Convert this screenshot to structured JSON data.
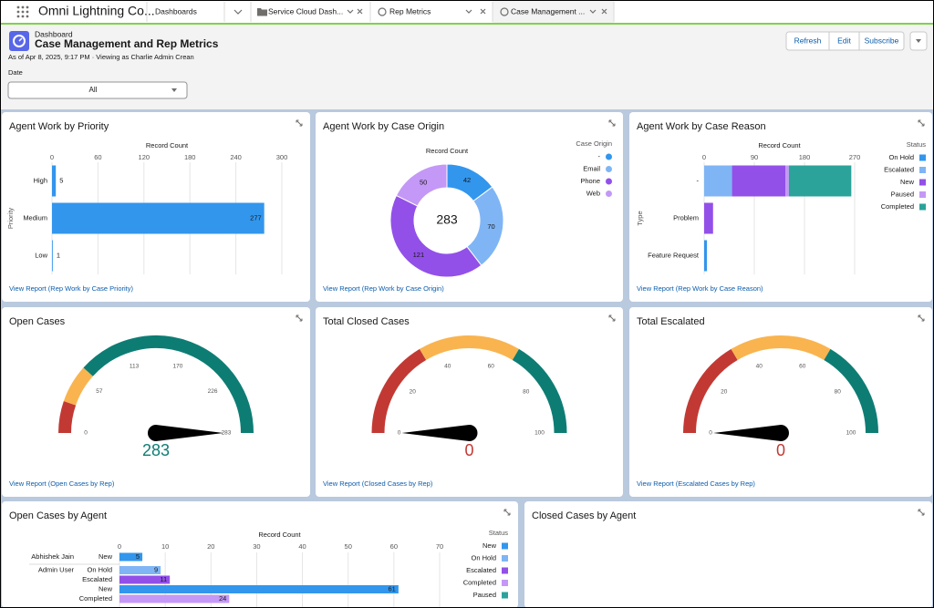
{
  "app": {
    "name": "Omni Lightning Co...",
    "tabs": [
      "Dashboards",
      "Service Cloud Dash...",
      "Rep Metrics",
      "Case Management ..."
    ]
  },
  "header": {
    "object_label": "Dashboard",
    "title": "Case Management and Rep Metrics",
    "subtitle": "As of Apr 8, 2025, 9:17 PM · Viewing as Charlie Admin Crean",
    "buttons": [
      "Refresh",
      "Edit",
      "Subscribe"
    ]
  },
  "filter": {
    "label": "Date",
    "value": "All"
  },
  "chart_data": [
    {
      "type": "bar",
      "title": "Agent Work by Priority",
      "x_label": "Record Count",
      "y_label": "Priority",
      "categories": [
        "High",
        "Medium",
        "Low"
      ],
      "values": [
        5,
        277,
        1
      ],
      "color": "#3296ed",
      "xlim": [
        0,
        300
      ],
      "xticks": [
        0,
        60,
        120,
        180,
        240,
        300
      ],
      "grid": true,
      "data_labels": true,
      "link": "View Report (Rep Work by Case Priority)"
    },
    {
      "type": "donut",
      "title": "Agent Work by Case Origin",
      "subtitle": "Record Count",
      "legend_title": "Case Origin",
      "categories": [
        "-",
        "Email",
        "Phone",
        "Web"
      ],
      "values": [
        42,
        70,
        121,
        50
      ],
      "colors": [
        "#3296ed",
        "#7fb5f5",
        "#9250e9",
        "#c498f6"
      ],
      "total": 283,
      "link": "View Report (Rep Work by Case Origin)"
    },
    {
      "type": "bar",
      "title": "Agent Work by Case Reason",
      "x_label": "Record Count",
      "y_label": "Type",
      "legend_title": "Status",
      "categories": [
        "-",
        "Problem",
        "Feature Request"
      ],
      "series": [
        {
          "name": "On Hold",
          "color": "#3296ed",
          "values": [
            0,
            0,
            5
          ]
        },
        {
          "name": "Escalated",
          "color": "#7fb5f5",
          "values": [
            50,
            0,
            0
          ]
        },
        {
          "name": "New",
          "color": "#9250e9",
          "values": [
            96,
            16,
            0
          ]
        },
        {
          "name": "Paused",
          "color": "#c498f6",
          "values": [
            6,
            0,
            0
          ]
        },
        {
          "name": "Completed",
          "color": "#2ba39a",
          "values": [
            112,
            0,
            0
          ]
        }
      ],
      "xlim": [
        0,
        270
      ],
      "xticks": [
        0,
        90,
        180,
        270
      ],
      "grid": true,
      "data_labels": false,
      "link": "View Report (Rep Work by Case Reason)"
    },
    {
      "type": "gauge",
      "title": "Open Cases",
      "value": 283,
      "ylim": [
        0,
        283
      ],
      "yticks": [
        0,
        57,
        113,
        170,
        226,
        283
      ],
      "band_ends": [
        30,
        66,
        283
      ],
      "band_colors": [
        "#c23934",
        "#f9b44f",
        "#0d7d74"
      ],
      "link": "View Report (Open Cases by Rep)"
    },
    {
      "type": "gauge",
      "title": "Total Closed Cases",
      "value": 0,
      "ylim": [
        0,
        100
      ],
      "yticks": [
        0,
        20,
        40,
        60,
        80,
        100
      ],
      "band_ends": [
        33,
        67,
        100
      ],
      "band_colors": [
        "#c23934",
        "#f9b44f",
        "#0d7d74"
      ],
      "link": "View Report (Closed Cases by Rep)"
    },
    {
      "type": "gauge",
      "title": "Total Escalated",
      "value": 0,
      "ylim": [
        0,
        100
      ],
      "yticks": [
        0,
        20,
        40,
        60,
        80,
        100
      ],
      "band_ends": [
        33,
        67,
        100
      ],
      "band_colors": [
        "#c23934",
        "#f9b44f",
        "#0d7d74"
      ],
      "link": "View Report (Escalated Cases by Rep)"
    },
    {
      "type": "bar",
      "title": "Open Cases by Agent",
      "x_label": "Record Count",
      "legend_title": "Status",
      "group_labels": [
        "Abhishek Jain",
        "Admin User",
        null,
        null,
        null
      ],
      "categories": [
        "New",
        "On Hold",
        "Escalated",
        "New",
        "Completed"
      ],
      "values": [
        5,
        9,
        11,
        61,
        24
      ],
      "colors": [
        "#3296ed",
        "#7fb5f5",
        "#9250e9",
        "#3296ed",
        "#c498f6"
      ],
      "legend": [
        {
          "name": "New",
          "color": "#3296ed"
        },
        {
          "name": "On Hold",
          "color": "#7fb5f5"
        },
        {
          "name": "Escalated",
          "color": "#9250e9"
        },
        {
          "name": "Completed",
          "color": "#c498f6"
        },
        {
          "name": "Paused",
          "color": "#2ba39a"
        }
      ],
      "xlim": [
        0,
        70
      ],
      "xticks": [
        0,
        10,
        20,
        30,
        40,
        50,
        60,
        70
      ],
      "grid": true,
      "data_labels": true
    },
    {
      "type": "empty",
      "title": "Closed Cases by Agent"
    }
  ]
}
